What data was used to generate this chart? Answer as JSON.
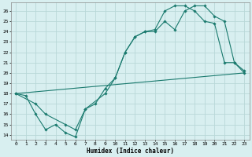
{
  "line1_x": [
    0,
    1,
    2,
    3,
    4,
    5,
    6,
    7,
    8,
    9,
    10,
    11,
    12,
    13,
    14,
    15,
    16,
    17,
    18,
    19,
    20,
    21,
    22,
    23
  ],
  "line1_y": [
    18,
    17.8,
    16,
    14.5,
    15,
    14.2,
    13.8,
    16.5,
    17,
    18.5,
    19.5,
    22,
    23.5,
    24,
    24,
    25,
    24.2,
    26,
    26.5,
    26.5,
    25.5,
    25,
    21,
    20
  ],
  "line2_x": [
    0,
    23
  ],
  "line2_y": [
    18,
    20
  ],
  "line3_x": [
    0,
    2,
    3,
    5,
    6,
    7,
    9,
    10,
    11,
    12,
    13,
    14,
    15,
    16,
    17,
    18,
    19,
    20,
    21,
    22,
    23
  ],
  "line3_y": [
    18,
    17,
    16,
    15,
    14.5,
    16.5,
    18,
    19.5,
    22,
    23.5,
    24,
    24.2,
    26,
    26.5,
    26.5,
    26,
    25,
    24.8,
    21,
    21,
    20.2
  ],
  "color": "#1a7a6e",
  "bg_color": "#d8eff0",
  "grid_color": "#b8d8d8",
  "xlabel": "Humidex (Indice chaleur)",
  "ylim": [
    13.5,
    26.8
  ],
  "xlim": [
    -0.5,
    23.5
  ],
  "yticks": [
    14,
    15,
    16,
    17,
    18,
    19,
    20,
    21,
    22,
    23,
    24,
    25,
    26
  ],
  "xticks": [
    0,
    1,
    2,
    3,
    4,
    5,
    6,
    7,
    8,
    9,
    10,
    11,
    12,
    13,
    14,
    15,
    16,
    17,
    18,
    19,
    20,
    21,
    22,
    23
  ]
}
